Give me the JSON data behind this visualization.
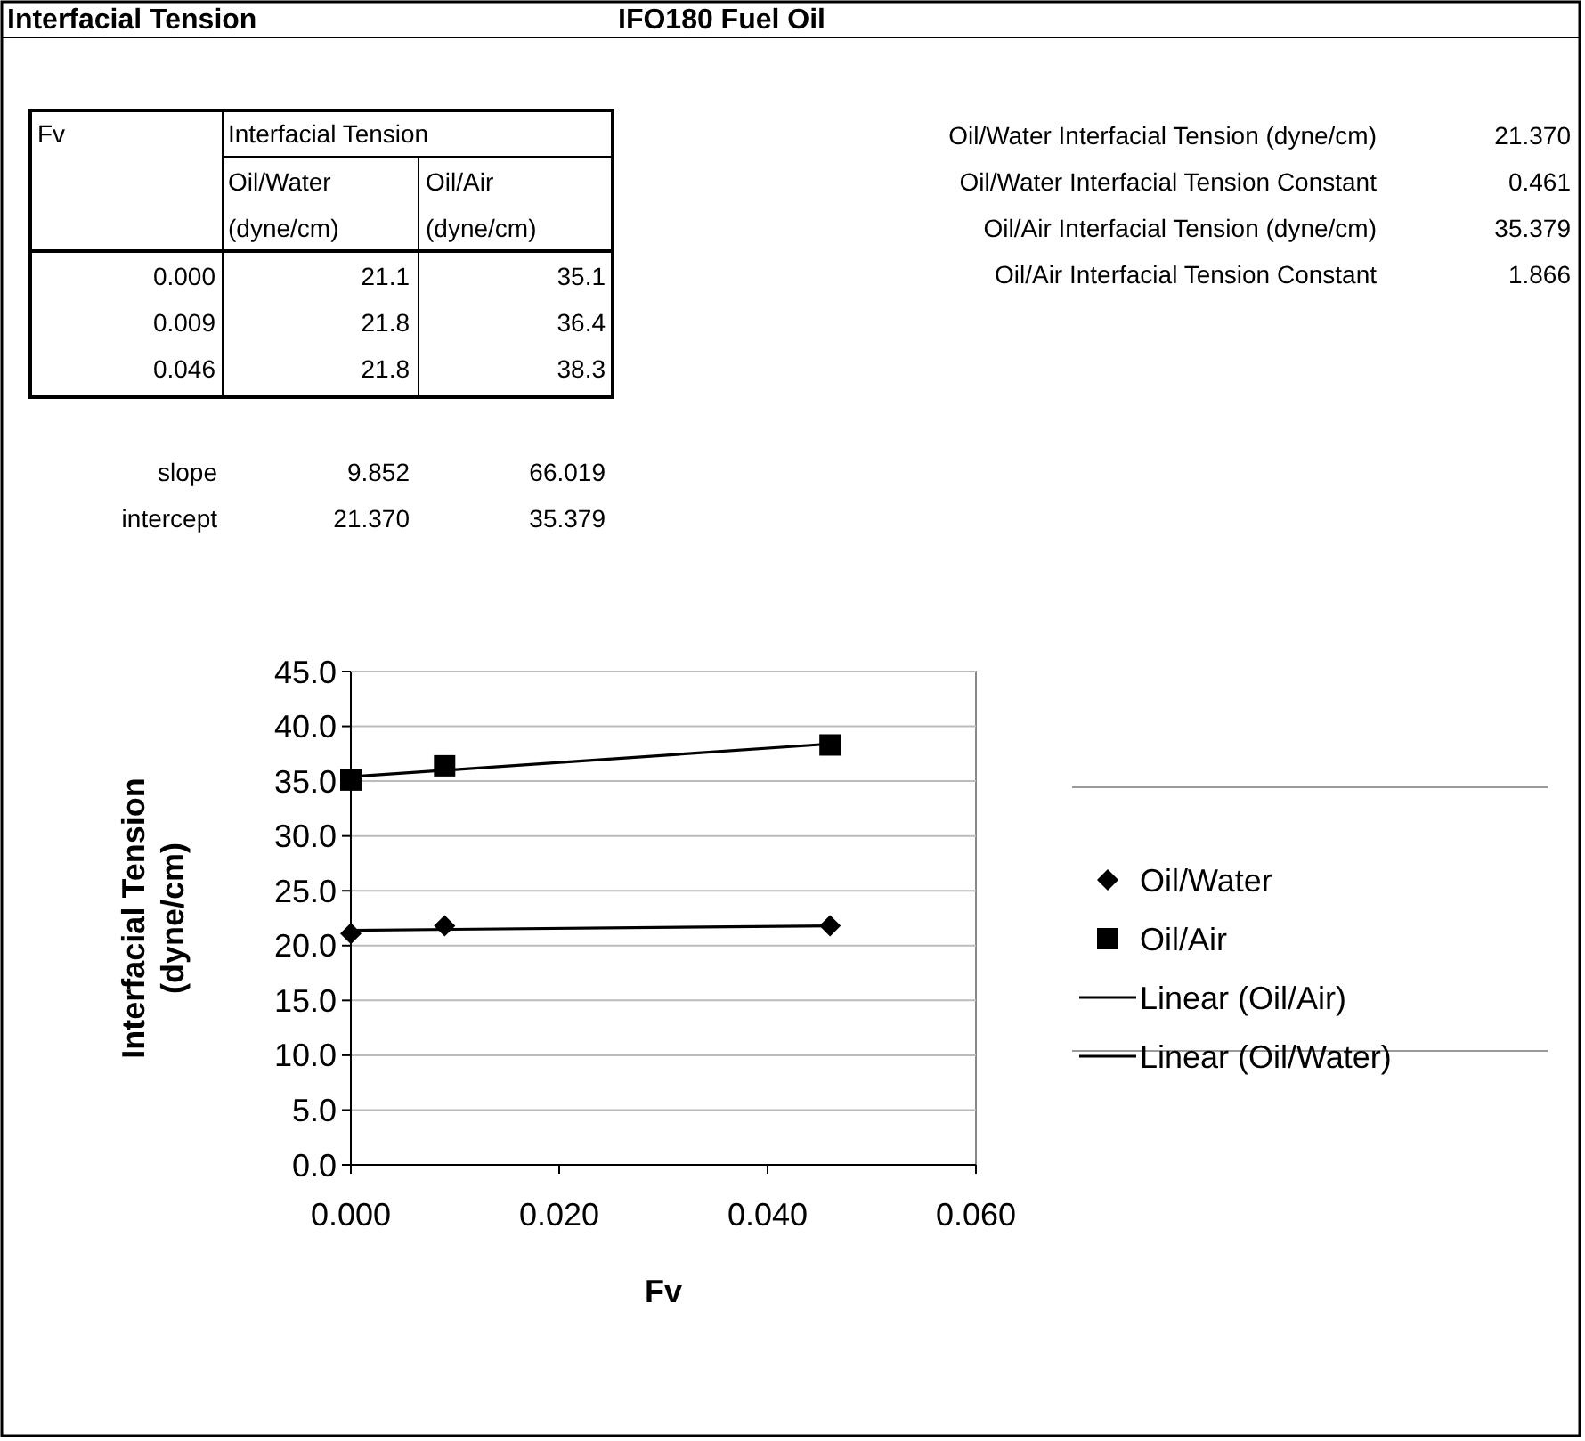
{
  "chart_data": {
    "type": "scatter",
    "title": "Interfacial Tension",
    "subtitle": "IFO180 Fuel Oil",
    "xlabel": "Fv",
    "ylabel": "Interfacial Tension (dyne/cm)",
    "xlim": [
      0,
      0.06
    ],
    "xticks": [
      {
        "value": 0,
        "label": "0.000"
      },
      {
        "value": 0.02,
        "label": "0.020"
      },
      {
        "value": 0.04,
        "label": "0.040"
      },
      {
        "value": 0.06,
        "label": "0.060"
      }
    ],
    "ylim": [
      0,
      45
    ],
    "yticks": [
      {
        "value": 0,
        "label": "0.0"
      },
      {
        "value": 5,
        "label": "5.0"
      },
      {
        "value": 10,
        "label": "10.0"
      },
      {
        "value": 15,
        "label": "15.0"
      },
      {
        "value": 20,
        "label": "20.0"
      },
      {
        "value": 25,
        "label": "25.0"
      },
      {
        "value": 30,
        "label": "30.0"
      },
      {
        "value": 35,
        "label": "35.0"
      },
      {
        "value": 40,
        "label": "40.0"
      },
      {
        "value": 45,
        "label": "45.0"
      }
    ],
    "grid": "y",
    "legend": "right",
    "series": [
      {
        "name": "Oil/Water",
        "type": "scatter",
        "marker": "diamond",
        "color": "#000000",
        "x": [
          0,
          0.009,
          0.046
        ],
        "values": [
          21.1,
          21.8,
          21.8
        ]
      },
      {
        "name": "Oil/Air",
        "type": "scatter",
        "marker": "square",
        "color": "#000000",
        "x": [
          0,
          0.009,
          0.046
        ],
        "values": [
          35.1,
          36.4,
          38.3
        ]
      },
      {
        "name": "Linear (Oil/Air)",
        "type": "line",
        "marker": "none",
        "color": "#000000",
        "x": [
          0,
          0.046
        ],
        "values": [
          35.4,
          38.4
        ]
      },
      {
        "name": "Linear (Oil/Water)",
        "type": "line",
        "marker": "none",
        "color": "#000000",
        "x": [
          0,
          0.046
        ],
        "values": [
          21.4,
          21.8
        ]
      }
    ],
    "annotations": [
      "Fv",
      "Interfacial Tension",
      "Oil/Water",
      "Oil/Air",
      "(dyne/cm)",
      "(dyne/cm)",
      "0.000",
      "21.1",
      "35.1",
      "0.009",
      "21.8",
      "36.4",
      "0.046",
      "21.8",
      "38.3",
      "slope",
      "9.852",
      "66.019",
      "intercept",
      "21.370",
      "35.379",
      "Oil/Water Interfacial Tension (dyne/cm)",
      "21.370",
      "Oil/Water Interfacial Tension Constant",
      "0.461",
      "Oil/Air Interfacial Tension (dyne/cm)",
      "35.379",
      "Oil/Air Interfacial Tension Constant",
      "1.866"
    ]
  }
}
